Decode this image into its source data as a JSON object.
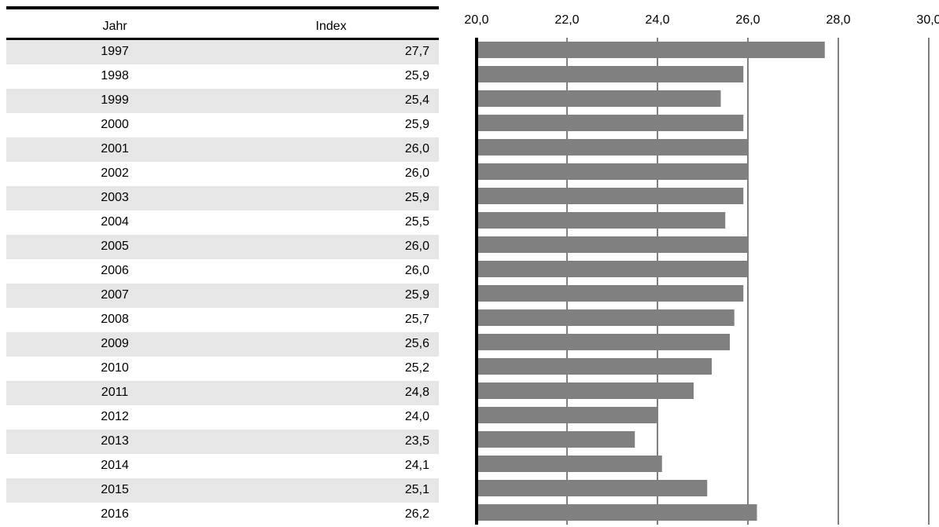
{
  "table": {
    "headers": {
      "year": "Jahr",
      "index": "Index"
    },
    "rows": [
      {
        "year": "1997",
        "value": "27,7"
      },
      {
        "year": "1998",
        "value": "25,9"
      },
      {
        "year": "1999",
        "value": "25,4"
      },
      {
        "year": "2000",
        "value": "25,9"
      },
      {
        "year": "2001",
        "value": "26,0"
      },
      {
        "year": "2002",
        "value": "26,0"
      },
      {
        "year": "2003",
        "value": "25,9"
      },
      {
        "year": "2004",
        "value": "25,5"
      },
      {
        "year": "2005",
        "value": "26,0"
      },
      {
        "year": "2006",
        "value": "26,0"
      },
      {
        "year": "2007",
        "value": "25,9"
      },
      {
        "year": "2008",
        "value": "25,7"
      },
      {
        "year": "2009",
        "value": "25,6"
      },
      {
        "year": "2010",
        "value": "25,2"
      },
      {
        "year": "2011",
        "value": "24,8"
      },
      {
        "year": "2012",
        "value": "24,0"
      },
      {
        "year": "2013",
        "value": "23,5"
      },
      {
        "year": "2014",
        "value": "24,1"
      },
      {
        "year": "2015",
        "value": "25,1"
      },
      {
        "year": "2016",
        "value": "26,2"
      }
    ]
  },
  "chart_data": {
    "type": "bar",
    "orientation": "horizontal",
    "categories": [
      "1997",
      "1998",
      "1999",
      "2000",
      "2001",
      "2002",
      "2003",
      "2004",
      "2005",
      "2006",
      "2007",
      "2008",
      "2009",
      "2010",
      "2011",
      "2012",
      "2013",
      "2014",
      "2015",
      "2016"
    ],
    "values": [
      27.7,
      25.9,
      25.4,
      25.9,
      26.0,
      26.0,
      25.9,
      25.5,
      26.0,
      26.0,
      25.9,
      25.7,
      25.6,
      25.2,
      24.8,
      24.0,
      23.5,
      24.1,
      25.1,
      26.2
    ],
    "xlim": [
      20,
      30
    ],
    "ticks": [
      "20,0",
      "22,0",
      "24,0",
      "26,0",
      "28,0",
      "30,0"
    ],
    "tick_values": [
      20,
      22,
      24,
      26,
      28,
      30
    ],
    "grid": true,
    "colors": {
      "bar": "#808080",
      "axis": "#000000",
      "grid": "#000000"
    }
  }
}
